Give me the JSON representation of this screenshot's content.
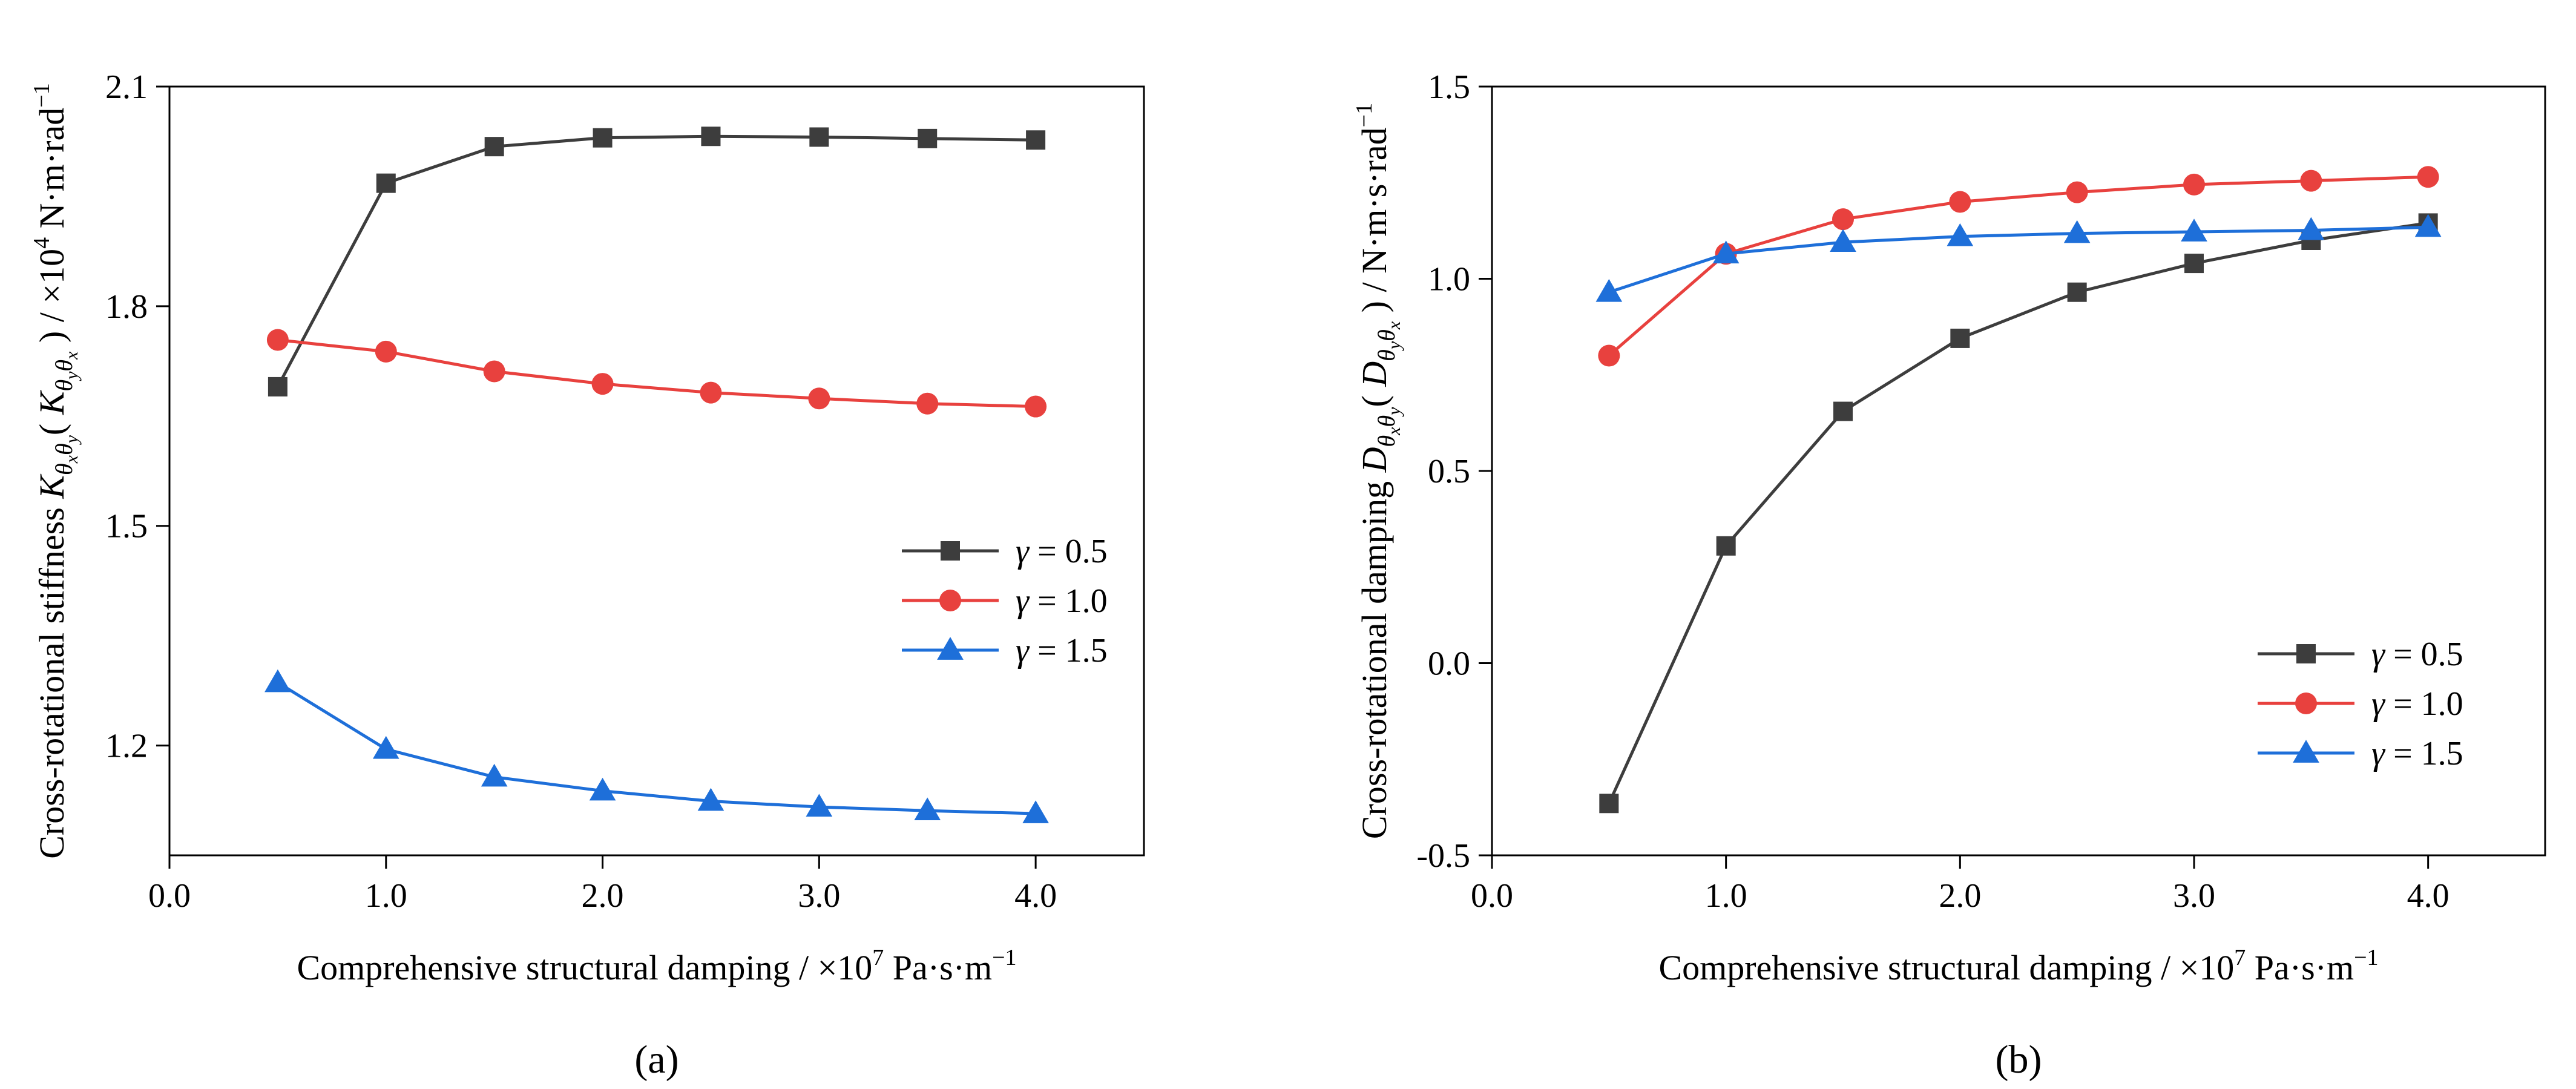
{
  "chart_data": [
    {
      "type": "line",
      "panel_label": "(a)",
      "xlabel": "Comprehensive structural damping / ×10^7 Pa·s·m^-1",
      "xlabel_main": "Comprehensive structural damping / ×10",
      "xlabel_exp": "7",
      "xlabel_units": " Pa·s·m",
      "xlabel_units_exp": "−1",
      "ylabel": "Cross-rotational stiffness K_θxθy ( K_θyθx ) / ×10^4 N·m·rad^-1",
      "ylabel_pre": "Cross-rotational stiffness ",
      "ylabel_sym": "K",
      "ylabel_sub1": "θ",
      "ylabel_sub1_sub": "x",
      "ylabel_sub2": "θ",
      "ylabel_sub2_sub": "y",
      "ylabel_paren_sym": "K",
      "ylabel_psub1": "θ",
      "ylabel_psub1_sub": "y",
      "ylabel_psub2": "θ",
      "ylabel_psub2_sub": "x",
      "ylabel_scale": " / ×10",
      "ylabel_scale_exp": "4",
      "ylabel_units": " N·m·rad",
      "ylabel_units_exp": "−1",
      "xlim": [
        0.0,
        4.5
      ],
      "ylim": [
        1.05,
        2.1
      ],
      "xticks": [
        0.0,
        1.0,
        2.0,
        3.0,
        4.0
      ],
      "xtick_labels": [
        "0.0",
        "1.0",
        "2.0",
        "3.0",
        "4.0"
      ],
      "yticks": [
        1.2,
        1.5,
        1.8,
        2.1
      ],
      "ytick_labels": [
        "1.2",
        "1.5",
        "1.8",
        "2.1"
      ],
      "legend_position": "center-right",
      "x": [
        0.5,
        1.0,
        1.5,
        2.0,
        2.5,
        3.0,
        3.5,
        4.0
      ],
      "series": [
        {
          "name": "γ = 0.5",
          "symbol": "γ",
          "label_value": " = 0.5",
          "marker": "square",
          "color": "#3d3d3d",
          "values": [
            1.69,
            1.968,
            2.018,
            2.03,
            2.032,
            2.031,
            2.029,
            2.027
          ]
        },
        {
          "name": "γ = 1.0",
          "symbol": "γ",
          "label_value": " = 1.0",
          "marker": "circle",
          "color": "#e8413e",
          "values": [
            1.754,
            1.738,
            1.711,
            1.694,
            1.682,
            1.674,
            1.667,
            1.663
          ]
        },
        {
          "name": "γ = 1.5",
          "symbol": "γ",
          "label_value": " = 1.5",
          "marker": "triangle",
          "color": "#1e6fd9",
          "values": [
            1.286,
            1.195,
            1.157,
            1.138,
            1.124,
            1.116,
            1.111,
            1.107
          ]
        }
      ]
    },
    {
      "type": "line",
      "panel_label": "(b)",
      "xlabel": "Comprehensive structural damping / ×10^7 Pa·s·m^-1",
      "xlabel_main": "Comprehensive structural damping / ×10",
      "xlabel_exp": "7",
      "xlabel_units": " Pa·s·m",
      "xlabel_units_exp": "−1",
      "ylabel": "Cross-rotational damping D_θxθy ( D_θyθx ) / N·m·s·rad^-1",
      "ylabel_pre": "Cross-rotational damping ",
      "ylabel_sym": "D",
      "ylabel_sub1": "θ",
      "ylabel_sub1_sub": "x",
      "ylabel_sub2": "θ",
      "ylabel_sub2_sub": "y",
      "ylabel_paren_sym": "D",
      "ylabel_psub1": "θ",
      "ylabel_psub1_sub": "y",
      "ylabel_psub2": "θ",
      "ylabel_psub2_sub": "x",
      "ylabel_scale": "",
      "ylabel_scale_exp": "",
      "ylabel_units": " / N·m·s·rad",
      "ylabel_units_exp": "−1",
      "xlim": [
        0.0,
        4.5
      ],
      "ylim": [
        -0.5,
        1.5
      ],
      "xticks": [
        0.0,
        1.0,
        2.0,
        3.0,
        4.0
      ],
      "xtick_labels": [
        "0.0",
        "1.0",
        "2.0",
        "3.0",
        "4.0"
      ],
      "yticks": [
        -0.5,
        0.0,
        0.5,
        1.0,
        1.5
      ],
      "ytick_labels": [
        "-0.5",
        "0.0",
        "0.5",
        "1.0",
        "1.5"
      ],
      "legend_position": "lower-right",
      "x": [
        0.5,
        1.0,
        1.5,
        2.0,
        2.5,
        3.0,
        3.5,
        4.0
      ],
      "series": [
        {
          "name": "γ = 0.5",
          "symbol": "γ",
          "label_value": " = 0.5",
          "marker": "square",
          "color": "#3d3d3d",
          "values": [
            -0.365,
            0.305,
            0.655,
            0.845,
            0.965,
            1.04,
            1.1,
            1.145
          ]
        },
        {
          "name": "γ = 1.0",
          "symbol": "γ",
          "label_value": " = 1.0",
          "marker": "circle",
          "color": "#e8413e",
          "values": [
            0.8,
            1.065,
            1.155,
            1.2,
            1.225,
            1.245,
            1.255,
            1.265
          ]
        },
        {
          "name": "γ = 1.5",
          "symbol": "γ",
          "label_value": " = 1.5",
          "marker": "triangle",
          "color": "#1e6fd9",
          "values": [
            0.965,
            1.065,
            1.095,
            1.11,
            1.118,
            1.122,
            1.126,
            1.134
          ]
        }
      ]
    }
  ]
}
